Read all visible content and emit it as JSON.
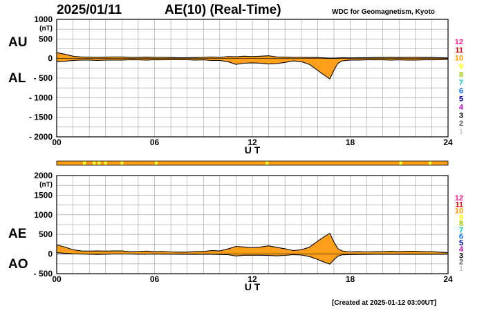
{
  "header": {
    "date": "2025/01/11",
    "title": "AE(10) (Real-Time)",
    "source": "WDC for Geomagnetism, Kyoto"
  },
  "footer": {
    "created": "[Created at 2025-01-12 03:00UT]"
  },
  "colors": {
    "fill": "#ff9f1a",
    "grid": "#999999",
    "frame": "#000000",
    "flag_bar": "#ff9f1a",
    "flag_mark": "#ffff33"
  },
  "station_scale": {
    "labels": [
      "12",
      "11",
      "10",
      "9",
      "8",
      "7",
      "6",
      "5",
      "4",
      "3",
      "2",
      "1"
    ],
    "colors": [
      "#ff1493",
      "#e00000",
      "#ff9900",
      "#ffff00",
      "#99cc00",
      "#00cccc",
      "#0066ff",
      "#0000aa",
      "#cc00cc",
      "#000000",
      "#666666",
      "#cccccc"
    ]
  },
  "chart_data": [
    {
      "type": "area",
      "panel": "AU/AL",
      "left_labels": [
        "AU",
        "AL"
      ],
      "ylabel": "(nT)",
      "xlabel": "U T",
      "x_ticks": [
        "00",
        "06",
        "12",
        "18",
        "24"
      ],
      "xlim": [
        0,
        24
      ],
      "ylim": [
        -2000,
        1000
      ],
      "y_ticks": [
        1000,
        500,
        0,
        -500,
        -1000,
        -1500,
        -2000
      ],
      "y_tick_labels": [
        "1000",
        "500",
        "0",
        "- 500",
        "- 1000",
        "- 1500",
        "- 2000"
      ],
      "grid": true,
      "hours": [
        0,
        0.5,
        1,
        1.5,
        2,
        2.5,
        3,
        3.5,
        4,
        4.5,
        5,
        5.5,
        6,
        6.5,
        7,
        7.5,
        8,
        8.5,
        9,
        9.5,
        10,
        10.5,
        11,
        11.5,
        12,
        12.5,
        13,
        13.5,
        14,
        14.5,
        15,
        15.5,
        16,
        16.25,
        16.5,
        16.75,
        17,
        17.25,
        17.5,
        18,
        18.5,
        19,
        19.5,
        20,
        20.5,
        21,
        21.5,
        22,
        22.5,
        23,
        23.5,
        24
      ],
      "series": [
        {
          "name": "AU",
          "values": [
            150,
            110,
            60,
            40,
            35,
            30,
            35,
            40,
            40,
            30,
            30,
            35,
            30,
            30,
            25,
            20,
            20,
            25,
            30,
            40,
            30,
            50,
            45,
            60,
            50,
            60,
            70,
            40,
            35,
            30,
            30,
            25,
            25,
            20,
            15,
            10,
            10,
            15,
            20,
            15,
            20,
            20,
            25,
            25,
            30,
            25,
            30,
            30,
            25,
            25,
            20,
            15
          ]
        },
        {
          "name": "AL",
          "values": [
            -80,
            -70,
            -50,
            -40,
            -40,
            -50,
            -40,
            -40,
            -40,
            -30,
            -35,
            -40,
            -30,
            -35,
            -30,
            -30,
            -30,
            -40,
            -35,
            -50,
            -50,
            -80,
            -150,
            -120,
            -110,
            -120,
            -140,
            -130,
            -100,
            -60,
            -80,
            -150,
            -300,
            -380,
            -450,
            -520,
            -300,
            -120,
            -60,
            -40,
            -40,
            -35,
            -35,
            -35,
            -40,
            -35,
            -40,
            -40,
            -35,
            -35,
            -30,
            -20
          ]
        }
      ]
    },
    {
      "type": "area",
      "panel": "AE/AO",
      "left_labels": [
        "AE",
        "AO"
      ],
      "ylabel": "(nT)",
      "xlabel": "U T",
      "x_ticks": [
        "00",
        "06",
        "12",
        "18",
        "24"
      ],
      "xlim": [
        0,
        24
      ],
      "ylim": [
        -500,
        2000
      ],
      "y_ticks": [
        2000,
        1500,
        1000,
        500,
        0,
        -500
      ],
      "y_tick_labels": [
        "2000",
        "1500",
        "1000",
        "500",
        "0",
        "- 500"
      ],
      "grid": true,
      "hours": [
        0,
        0.5,
        1,
        1.5,
        2,
        2.5,
        3,
        3.5,
        4,
        4.5,
        5,
        5.5,
        6,
        6.5,
        7,
        7.5,
        8,
        8.5,
        9,
        9.5,
        10,
        10.5,
        11,
        11.5,
        12,
        12.5,
        13,
        13.5,
        14,
        14.5,
        15,
        15.5,
        16,
        16.25,
        16.5,
        16.75,
        17,
        17.25,
        17.5,
        18,
        18.5,
        19,
        19.5,
        20,
        20.5,
        21,
        21.5,
        22,
        22.5,
        23,
        23.5,
        24
      ],
      "series": [
        {
          "name": "AE",
          "values": [
            230,
            180,
            110,
            80,
            75,
            80,
            75,
            80,
            80,
            60,
            65,
            75,
            60,
            65,
            55,
            50,
            50,
            65,
            65,
            90,
            80,
            130,
            195,
            180,
            160,
            180,
            210,
            170,
            135,
            90,
            110,
            175,
            325,
            400,
            465,
            530,
            310,
            135,
            80,
            55,
            60,
            55,
            60,
            60,
            70,
            60,
            70,
            70,
            60,
            60,
            50,
            35
          ]
        },
        {
          "name": "AO",
          "values": [
            35,
            20,
            5,
            0,
            -3,
            -10,
            -3,
            0,
            0,
            0,
            -3,
            -3,
            0,
            -3,
            -3,
            -5,
            -5,
            -8,
            -3,
            -5,
            -10,
            -15,
            -50,
            -30,
            -30,
            -30,
            -35,
            -45,
            -33,
            -15,
            -25,
            -63,
            -138,
            -180,
            -218,
            -255,
            -145,
            -53,
            -20,
            -13,
            -10,
            -8,
            -5,
            -5,
            -5,
            -5,
            -5,
            -5,
            -5,
            -5,
            -5,
            -3
          ]
        }
      ]
    }
  ],
  "flag_bar": {
    "marks_ut": [
      1.7,
      2.3,
      2.6,
      3.0,
      4.0,
      6.1,
      12.9,
      21.1,
      22.9
    ]
  }
}
